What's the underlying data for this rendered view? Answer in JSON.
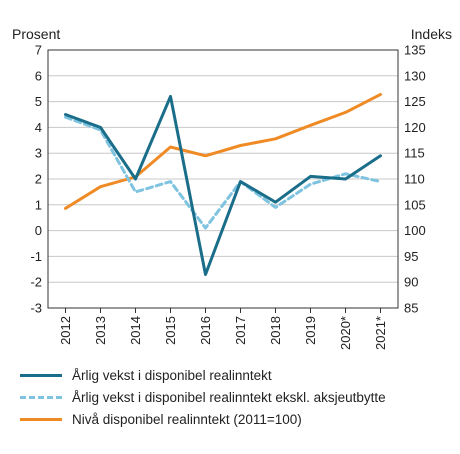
{
  "chart_data": {
    "type": "line",
    "left_axis_title": "Prosent",
    "right_axis_title": "Indeks",
    "x": [
      "2012",
      "2013",
      "2014",
      "2015",
      "2016",
      "2017",
      "2018",
      "2019",
      "2020*",
      "2021*"
    ],
    "left_ylim": [
      -3,
      7
    ],
    "left_ticks": [
      7,
      6,
      5,
      4,
      3,
      2,
      1,
      0,
      -1,
      -2,
      -3
    ],
    "right_ylim": [
      85,
      135
    ],
    "right_ticks": [
      135,
      130,
      125,
      120,
      115,
      110,
      105,
      100,
      95,
      90,
      85
    ],
    "grid": true,
    "series": [
      {
        "name": "Årlig vekst i disponibel realinntekt",
        "axis": "left",
        "color": "#1a6e8a",
        "style": "solid",
        "values": [
          4.5,
          4.0,
          2.0,
          5.2,
          -1.7,
          1.9,
          1.1,
          2.1,
          2.0,
          2.9
        ]
      },
      {
        "name": "Årlig vekst i disponibel realinntekt ekskl. aksjeutbytte",
        "axis": "left",
        "color": "#7ec3e0",
        "style": "dashed",
        "values": [
          4.4,
          3.9,
          1.5,
          1.9,
          0.1,
          1.9,
          0.9,
          1.8,
          2.2,
          1.9
        ]
      },
      {
        "name": "Nivå disponibel realinntekt (2011=100)",
        "axis": "right",
        "color": "#f08a24",
        "style": "solid",
        "values": [
          104.3,
          108.5,
          110.4,
          116.2,
          114.5,
          116.5,
          117.8,
          120.4,
          122.9,
          126.4
        ]
      }
    ],
    "legend_position": "bottom"
  }
}
